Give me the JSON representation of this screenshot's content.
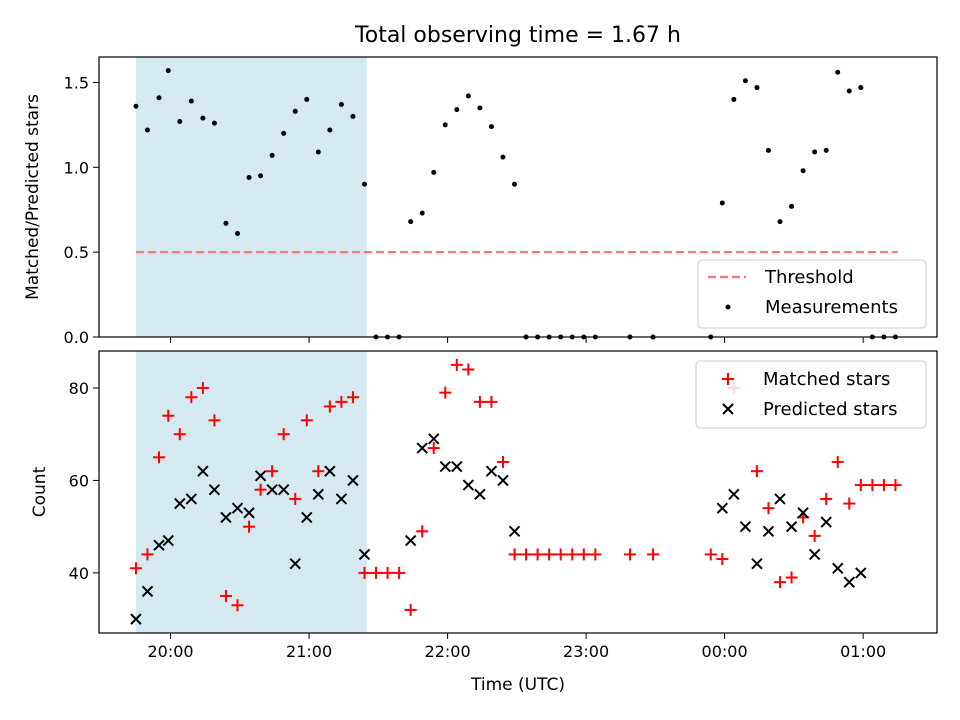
{
  "chart_data": [
    {
      "type": "scatter",
      "title": "Total observing time = 1.67 h",
      "xlabel": "",
      "ylabel": "Matched/Predicted stars",
      "xlim": [
        "19:29",
        "01:32"
      ],
      "ylim": [
        0,
        1.65
      ],
      "yticks": [
        "0.0",
        "0.5",
        "1.0",
        "1.5"
      ],
      "xticks": [
        "20:00",
        "21:00",
        "22:00",
        "23:00",
        "00:00",
        "01:00"
      ],
      "shaded_region": {
        "x": [
          "19:45",
          "21:25"
        ],
        "color": "#d4eaf0"
      },
      "threshold": {
        "name": "Threshold",
        "value": 0.5,
        "x": [
          "19:45",
          "01:15"
        ],
        "color": "#f47a7a"
      },
      "legend": {
        "placement": "bottom-right",
        "entries": [
          "Threshold",
          "Measurements"
        ]
      },
      "series": [
        {
          "name": "Measurements",
          "color": "#000000",
          "marker": "dot",
          "points": [
            [
              "19:45",
              1.36
            ],
            [
              "19:50",
              1.22
            ],
            [
              "19:55",
              1.41
            ],
            [
              "19:59",
              1.57
            ],
            [
              "20:04",
              1.27
            ],
            [
              "20:09",
              1.39
            ],
            [
              "20:14",
              1.29
            ],
            [
              "20:19",
              1.26
            ],
            [
              "20:24",
              0.67
            ],
            [
              "20:29",
              0.61
            ],
            [
              "20:34",
              0.94
            ],
            [
              "20:39",
              0.95
            ],
            [
              "20:44",
              1.07
            ],
            [
              "20:49",
              1.2
            ],
            [
              "20:54",
              1.33
            ],
            [
              "20:59",
              1.4
            ],
            [
              "21:04",
              1.09
            ],
            [
              "21:09",
              1.22
            ],
            [
              "21:14",
              1.37
            ],
            [
              "21:19",
              1.3
            ],
            [
              "21:24",
              0.9
            ],
            [
              "21:29",
              0.0
            ],
            [
              "21:34",
              0.0
            ],
            [
              "21:39",
              0.0
            ],
            [
              "21:44",
              0.68
            ],
            [
              "21:49",
              0.73
            ],
            [
              "21:54",
              0.97
            ],
            [
              "21:59",
              1.25
            ],
            [
              "22:04",
              1.34
            ],
            [
              "22:09",
              1.42
            ],
            [
              "22:14",
              1.35
            ],
            [
              "22:19",
              1.24
            ],
            [
              "22:24",
              1.06
            ],
            [
              "22:29",
              0.9
            ],
            [
              "22:34",
              0.0
            ],
            [
              "22:39",
              0.0
            ],
            [
              "22:44",
              0.0
            ],
            [
              "22:49",
              0.0
            ],
            [
              "22:54",
              0.0
            ],
            [
              "22:59",
              0.0
            ],
            [
              "23:04",
              0.0
            ],
            [
              "23:19",
              0.0
            ],
            [
              "23:29",
              0.0
            ],
            [
              "23:54",
              0.0
            ],
            [
              "23:59",
              0.79
            ],
            [
              "00:04",
              1.4
            ],
            [
              "00:09",
              1.51
            ],
            [
              "00:14",
              1.47
            ],
            [
              "00:19",
              1.1
            ],
            [
              "00:24",
              0.68
            ],
            [
              "00:29",
              0.77
            ],
            [
              "00:34",
              0.98
            ],
            [
              "00:39",
              1.09
            ],
            [
              "00:44",
              1.1
            ],
            [
              "00:49",
              1.56
            ],
            [
              "00:54",
              1.45
            ],
            [
              "00:59",
              1.47
            ],
            [
              "01:04",
              0.0
            ],
            [
              "01:09",
              0.0
            ],
            [
              "01:14",
              0.0
            ]
          ]
        }
      ]
    },
    {
      "type": "scatter",
      "title": "",
      "xlabel": "Time (UTC)",
      "ylabel": "Count",
      "xlim": [
        "19:29",
        "01:32"
      ],
      "ylim": [
        27,
        88
      ],
      "yticks": [
        "40",
        "60",
        "80"
      ],
      "xticks": [
        "20:00",
        "21:00",
        "22:00",
        "23:00",
        "00:00",
        "01:00"
      ],
      "shaded_region": {
        "x": [
          "19:45",
          "21:25"
        ],
        "color": "#d4eaf0"
      },
      "legend": {
        "placement": "top-right",
        "entries": [
          "Matched stars",
          "Predicted stars"
        ]
      },
      "series": [
        {
          "name": "Matched stars",
          "color": "#ff0000",
          "marker": "plus",
          "points": [
            [
              "19:45",
              41
            ],
            [
              "19:50",
              44
            ],
            [
              "19:55",
              65
            ],
            [
              "19:59",
              74
            ],
            [
              "20:04",
              70
            ],
            [
              "20:09",
              78
            ],
            [
              "20:14",
              80
            ],
            [
              "20:19",
              73
            ],
            [
              "20:24",
              35
            ],
            [
              "20:29",
              33
            ],
            [
              "20:34",
              50
            ],
            [
              "20:39",
              58
            ],
            [
              "20:44",
              62
            ],
            [
              "20:49",
              70
            ],
            [
              "20:54",
              56
            ],
            [
              "20:59",
              73
            ],
            [
              "21:04",
              62
            ],
            [
              "21:09",
              76
            ],
            [
              "21:14",
              77
            ],
            [
              "21:19",
              78
            ],
            [
              "21:24",
              40
            ],
            [
              "21:29",
              40
            ],
            [
              "21:34",
              40
            ],
            [
              "21:39",
              40
            ],
            [
              "21:44",
              32
            ],
            [
              "21:49",
              49
            ],
            [
              "21:54",
              67
            ],
            [
              "21:59",
              79
            ],
            [
              "22:04",
              85
            ],
            [
              "22:09",
              84
            ],
            [
              "22:14",
              77
            ],
            [
              "22:19",
              77
            ],
            [
              "22:24",
              64
            ],
            [
              "22:29",
              44
            ],
            [
              "22:34",
              44
            ],
            [
              "22:39",
              44
            ],
            [
              "22:44",
              44
            ],
            [
              "22:49",
              44
            ],
            [
              "22:54",
              44
            ],
            [
              "22:59",
              44
            ],
            [
              "23:04",
              44
            ],
            [
              "23:19",
              44
            ],
            [
              "23:29",
              44
            ],
            [
              "23:54",
              44
            ],
            [
              "23:59",
              43
            ],
            [
              "00:04",
              80
            ],
            [
              "00:14",
              62
            ],
            [
              "00:19",
              54
            ],
            [
              "00:24",
              38
            ],
            [
              "00:29",
              39
            ],
            [
              "00:34",
              52
            ],
            [
              "00:39",
              48
            ],
            [
              "00:44",
              56
            ],
            [
              "00:49",
              64
            ],
            [
              "00:54",
              55
            ],
            [
              "00:59",
              59
            ],
            [
              "01:04",
              59
            ],
            [
              "01:09",
              59
            ],
            [
              "01:14",
              59
            ]
          ]
        },
        {
          "name": "Predicted stars",
          "color": "#000000",
          "marker": "x",
          "points": [
            [
              "19:45",
              30
            ],
            [
              "19:50",
              36
            ],
            [
              "19:55",
              46
            ],
            [
              "19:59",
              47
            ],
            [
              "20:04",
              55
            ],
            [
              "20:09",
              56
            ],
            [
              "20:14",
              62
            ],
            [
              "20:19",
              58
            ],
            [
              "20:24",
              52
            ],
            [
              "20:29",
              54
            ],
            [
              "20:34",
              53
            ],
            [
              "20:39",
              61
            ],
            [
              "20:44",
              58
            ],
            [
              "20:49",
              58
            ],
            [
              "20:54",
              42
            ],
            [
              "20:59",
              52
            ],
            [
              "21:04",
              57
            ],
            [
              "21:09",
              62
            ],
            [
              "21:14",
              56
            ],
            [
              "21:19",
              60
            ],
            [
              "21:24",
              44
            ],
            [
              "21:44",
              47
            ],
            [
              "21:49",
              67
            ],
            [
              "21:54",
              69
            ],
            [
              "21:59",
              63
            ],
            [
              "22:04",
              63
            ],
            [
              "22:09",
              59
            ],
            [
              "22:14",
              57
            ],
            [
              "22:19",
              62
            ],
            [
              "22:24",
              60
            ],
            [
              "22:29",
              49
            ],
            [
              "23:59",
              54
            ],
            [
              "00:04",
              57
            ],
            [
              "00:09",
              50
            ],
            [
              "00:14",
              42
            ],
            [
              "00:19",
              49
            ],
            [
              "00:24",
              56
            ],
            [
              "00:29",
              50
            ],
            [
              "00:34",
              53
            ],
            [
              "00:39",
              44
            ],
            [
              "00:44",
              51
            ],
            [
              "00:49",
              41
            ],
            [
              "00:54",
              38
            ],
            [
              "00:59",
              40
            ]
          ]
        }
      ]
    }
  ]
}
